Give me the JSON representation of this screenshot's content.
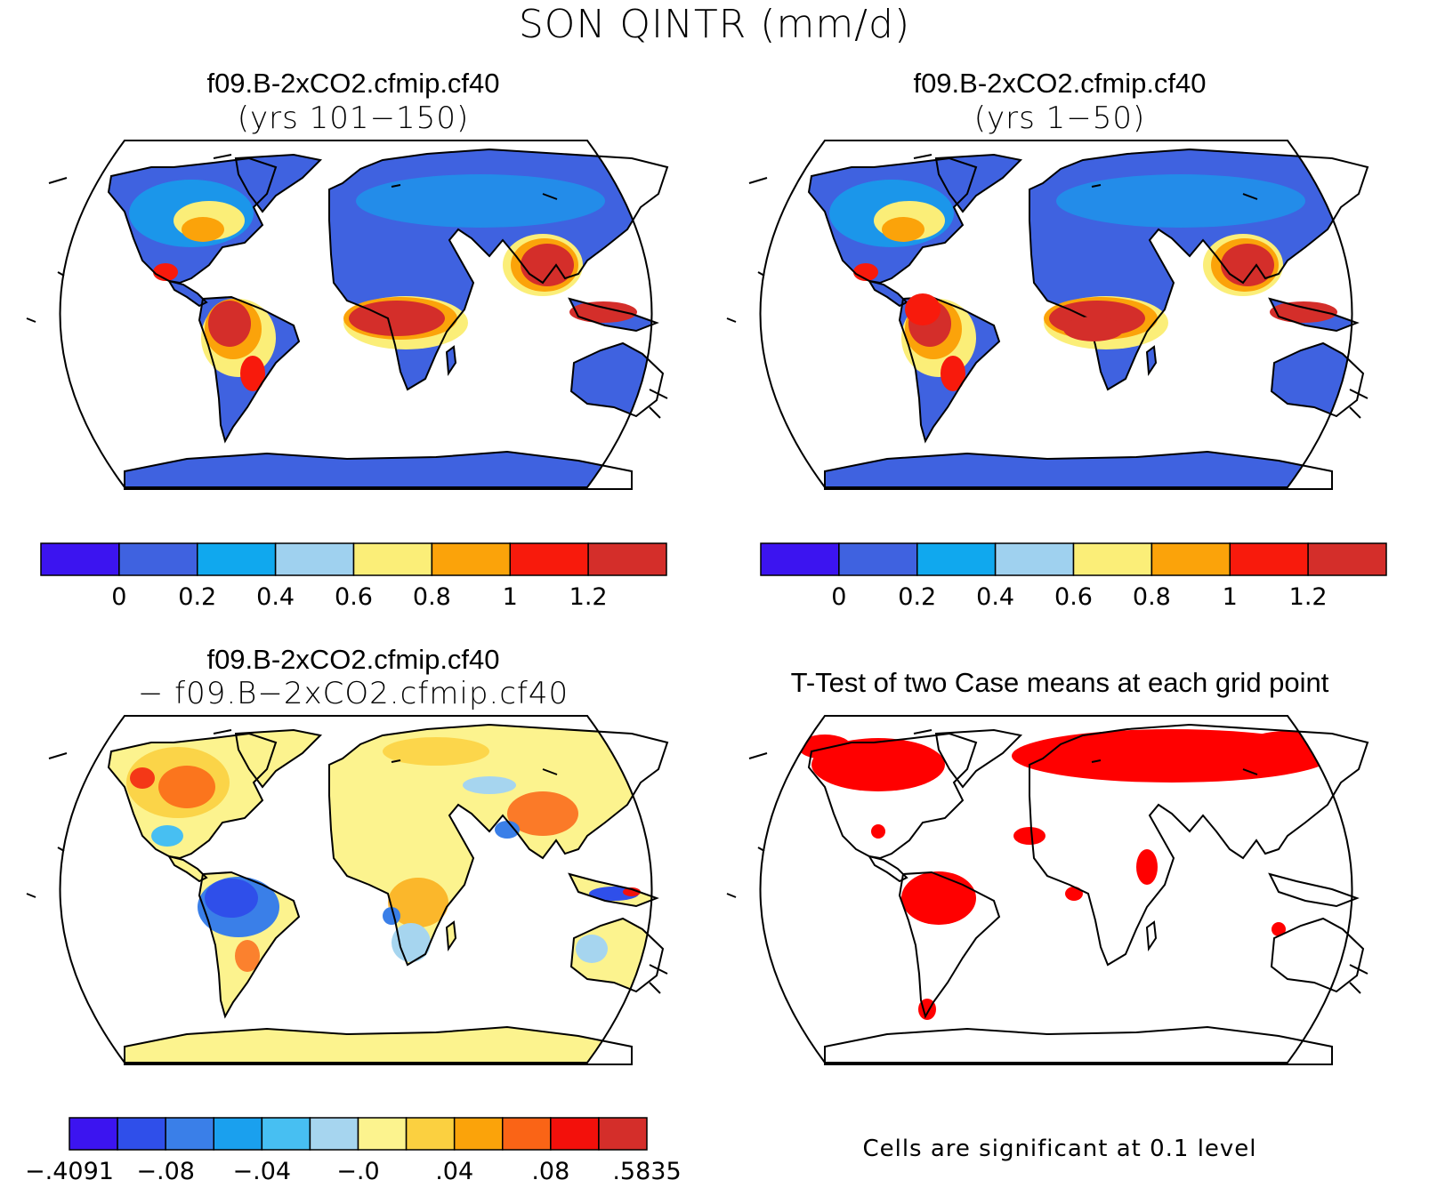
{
  "figure": {
    "title": "SON QINTR (mm/d)"
  },
  "panels": [
    {
      "id": "top-left",
      "title": "f09.B-2xCO2.cfmip.cf40",
      "subtitle": "(yrs 101−150)",
      "colorbar": {
        "colors": [
          "#3c14f0",
          "#3f62e0",
          "#10a8ee",
          "#9fd1ef",
          "#fbee78",
          "#fba30a",
          "#f81a0c",
          "#d42e2a"
        ],
        "labels": [
          "0",
          "0.2",
          "0.4",
          "0.6",
          "0.8",
          "1",
          "1.2"
        ]
      }
    },
    {
      "id": "top-right",
      "title": "f09.B-2xCO2.cfmip.cf40",
      "subtitle": "(yrs 1−50)",
      "colorbar": {
        "colors": [
          "#3c14f0",
          "#3f62e0",
          "#10a8ee",
          "#9fd1ef",
          "#fbee78",
          "#fba30a",
          "#f81a0c",
          "#d42e2a"
        ],
        "labels": [
          "0",
          "0.2",
          "0.4",
          "0.6",
          "0.8",
          "1",
          "1.2"
        ]
      }
    },
    {
      "id": "bottom-left",
      "title": "f09.B-2xCO2.cfmip.cf40",
      "subtitle": "− f09.B−2xCO2.cfmip.cf40",
      "colorbar": {
        "colors": [
          "#3c14f0",
          "#2f4fea",
          "#3a7fe8",
          "#1aa0ee",
          "#47bff2",
          "#a6d5ef",
          "#fcf38e",
          "#fbd040",
          "#fba30a",
          "#fa6416",
          "#f3100b",
          "#d42e2a"
        ],
        "labels": [
          "−.4091",
          "−.08",
          "−.04",
          "−.0",
          ".04",
          ".08",
          ".5835"
        ]
      }
    },
    {
      "id": "bottom-right",
      "title": "T-Test of two Case means at each grid point",
      "footnote": "Cells are significant at 0.1 level",
      "significance_color": "#ff0000"
    }
  ]
}
